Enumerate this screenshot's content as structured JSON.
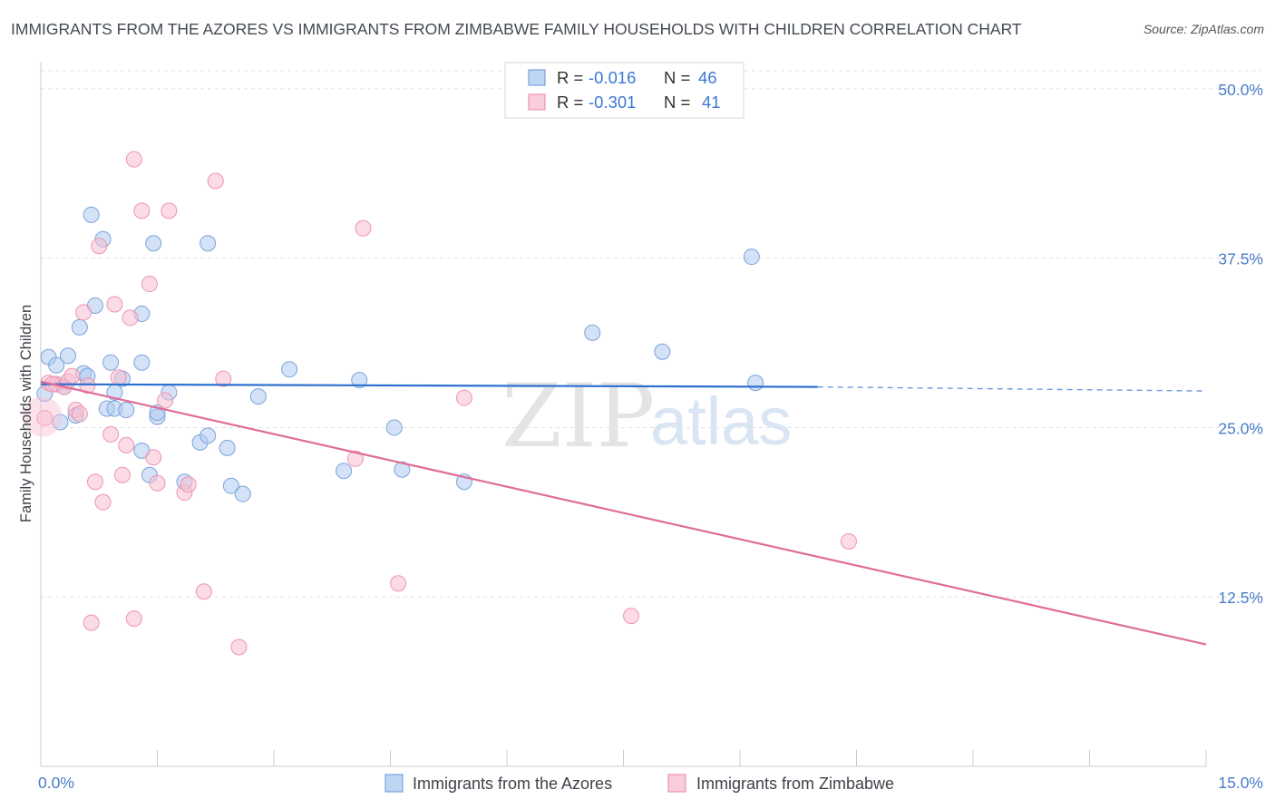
{
  "title": "IMMIGRANTS FROM THE AZORES VS IMMIGRANTS FROM ZIMBABWE FAMILY HOUSEHOLDS WITH CHILDREN CORRELATION CHART",
  "source": "Source: ZipAtlas.com",
  "watermark": {
    "zip": "ZIP",
    "atlas": "atlas"
  },
  "stats_legend": {
    "rows": [
      {
        "r_label": "R = ",
        "r_value": "-0.016",
        "n_label": "N = ",
        "n_value": "46"
      },
      {
        "r_label": "R = ",
        "r_value": "-0.301",
        "n_label": "N = ",
        "n_value": "41"
      }
    ]
  },
  "colors": {
    "azores_fill": "#aecbf0",
    "azores_stroke": "#7aa4d9",
    "azores_line": "#2d6fcf",
    "zimbabwe_fill": "#f8c0d2",
    "zimbabwe_stroke": "#ee93b2",
    "zimbabwe_line": "#e06d97",
    "value_blue": "#3b78d2",
    "axis_label": "#4a7cc8",
    "grid": "#dde1e6"
  },
  "chart_data": {
    "type": "scatter",
    "xlabel": "",
    "ylabel": "Family Households with Children",
    "xlim": [
      0,
      15
    ],
    "ylim": [
      0,
      52
    ],
    "x_tick_labels": [
      {
        "value": 0,
        "label": "0.0%"
      },
      {
        "value": 15,
        "label": "15.0%"
      }
    ],
    "y_tick_labels": [
      {
        "value": 12.5,
        "label": "12.5%"
      },
      {
        "value": 25,
        "label": "25.0%"
      },
      {
        "value": 37.5,
        "label": "37.5%"
      },
      {
        "value": 50,
        "label": "50.0%"
      }
    ],
    "grid": true,
    "legend_position": "bottom",
    "series": [
      {
        "name": "Immigrants from the Azores",
        "points": [
          [
            0.1,
            30.2
          ],
          [
            0.2,
            28.2
          ],
          [
            0.2,
            29.6
          ],
          [
            0.25,
            25.4
          ],
          [
            0.3,
            28.0
          ],
          [
            0.35,
            30.3
          ],
          [
            0.45,
            25.9
          ],
          [
            0.5,
            32.4
          ],
          [
            0.55,
            29.0
          ],
          [
            0.6,
            28.8
          ],
          [
            0.65,
            40.7
          ],
          [
            0.7,
            34.0
          ],
          [
            0.8,
            38.9
          ],
          [
            0.85,
            26.4
          ],
          [
            0.9,
            29.8
          ],
          [
            0.95,
            27.6
          ],
          [
            0.95,
            26.4
          ],
          [
            1.05,
            28.6
          ],
          [
            1.1,
            26.3
          ],
          [
            1.3,
            33.4
          ],
          [
            1.3,
            29.8
          ],
          [
            1.3,
            23.3
          ],
          [
            1.4,
            21.5
          ],
          [
            1.45,
            38.6
          ],
          [
            1.5,
            25.8
          ],
          [
            1.5,
            26.1
          ],
          [
            1.65,
            27.6
          ],
          [
            1.85,
            21.0
          ],
          [
            2.05,
            23.9
          ],
          [
            2.15,
            24.4
          ],
          [
            2.15,
            38.6
          ],
          [
            2.4,
            23.5
          ],
          [
            2.45,
            20.7
          ],
          [
            2.6,
            20.1
          ],
          [
            2.8,
            27.3
          ],
          [
            3.2,
            29.3
          ],
          [
            3.9,
            21.8
          ],
          [
            4.1,
            28.5
          ],
          [
            4.55,
            25.0
          ],
          [
            4.65,
            21.9
          ],
          [
            5.45,
            21.0
          ],
          [
            7.1,
            32.0
          ],
          [
            8.0,
            30.6
          ],
          [
            9.15,
            37.6
          ],
          [
            9.2,
            28.3
          ],
          [
            0.05,
            27.5
          ]
        ],
        "trend": {
          "solid_x": [
            0,
            10.0
          ],
          "y": [
            28.2,
            28.0
          ],
          "dashed_to_x": 15,
          "dashed_to_y": 27.7
        }
      },
      {
        "name": "Immigrants from Zimbabwe",
        "points": [
          [
            0.05,
            25.7
          ],
          [
            0.1,
            28.3
          ],
          [
            0.2,
            28.2
          ],
          [
            0.3,
            28.0
          ],
          [
            0.35,
            28.4
          ],
          [
            0.4,
            28.8
          ],
          [
            0.45,
            26.3
          ],
          [
            0.5,
            26.0
          ],
          [
            0.55,
            33.5
          ],
          [
            0.6,
            28.1
          ],
          [
            0.65,
            10.6
          ],
          [
            0.7,
            21.0
          ],
          [
            0.75,
            38.4
          ],
          [
            0.8,
            19.5
          ],
          [
            0.9,
            24.5
          ],
          [
            0.95,
            34.1
          ],
          [
            1.0,
            28.7
          ],
          [
            1.1,
            23.7
          ],
          [
            1.15,
            33.1
          ],
          [
            1.2,
            44.8
          ],
          [
            1.2,
            10.9
          ],
          [
            1.3,
            41.0
          ],
          [
            1.4,
            35.6
          ],
          [
            1.45,
            22.8
          ],
          [
            1.5,
            20.9
          ],
          [
            1.6,
            27.0
          ],
          [
            1.65,
            41.0
          ],
          [
            1.85,
            20.2
          ],
          [
            1.9,
            20.8
          ],
          [
            2.1,
            12.9
          ],
          [
            2.25,
            43.2
          ],
          [
            2.35,
            28.6
          ],
          [
            2.55,
            8.8
          ],
          [
            4.05,
            22.7
          ],
          [
            4.15,
            39.7
          ],
          [
            4.6,
            13.5
          ],
          [
            5.45,
            27.2
          ],
          [
            7.6,
            11.1
          ],
          [
            10.4,
            16.6
          ],
          [
            0.15,
            28.2
          ],
          [
            1.05,
            21.5
          ]
        ],
        "trend": {
          "x": [
            0,
            15
          ],
          "y": [
            28.4,
            9.0
          ]
        }
      }
    ]
  }
}
